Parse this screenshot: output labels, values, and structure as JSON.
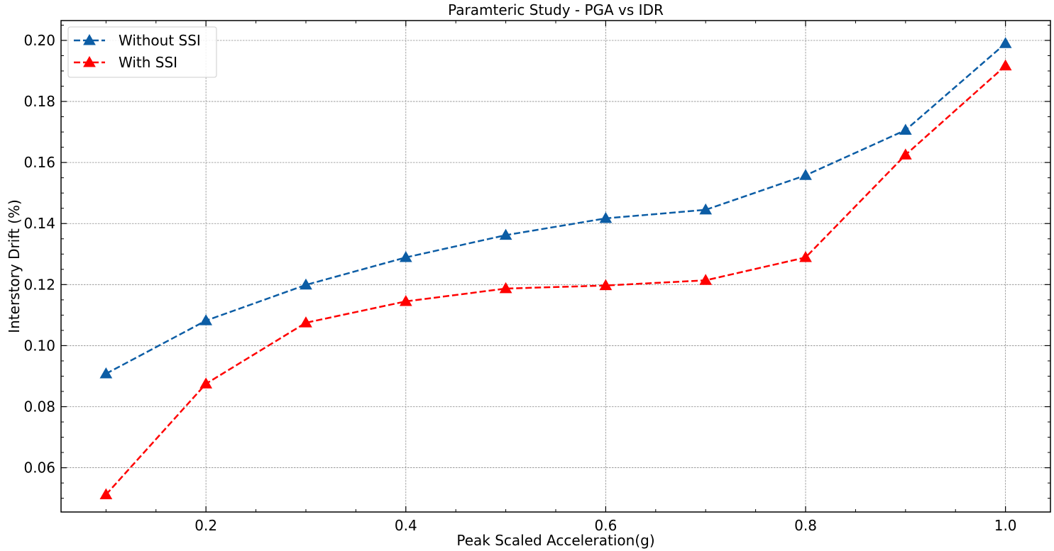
{
  "chart_data": {
    "type": "line",
    "title": "Paramteric Study - PGA vs IDR",
    "xlabel": "Peak Scaled Acceleration(g)",
    "ylabel": "Interstory Drift (%)",
    "xlim": [
      0.055,
      1.045
    ],
    "ylim": [
      0.0455,
      0.2065
    ],
    "xticks": [
      0.2,
      0.4,
      0.6,
      0.8,
      1.0
    ],
    "xtick_labels": [
      "0.2",
      "0.4",
      "0.6",
      "0.8",
      "1.0"
    ],
    "yticks": [
      0.06,
      0.08,
      0.1,
      0.12,
      0.14,
      0.16,
      0.18,
      0.2
    ],
    "ytick_labels": [
      "0.06",
      "0.08",
      "0.10",
      "0.12",
      "0.14",
      "0.16",
      "0.18",
      "0.20"
    ],
    "grid": true,
    "legend_position": "top-left",
    "x": [
      0.1,
      0.2,
      0.3,
      0.4,
      0.5,
      0.6,
      0.7,
      0.8,
      0.9,
      1.0
    ],
    "series": [
      {
        "name": "Without SSI",
        "color": "#0c5da5",
        "marker": "triangle",
        "line_style": "dashed",
        "values": [
          0.0908,
          0.1082,
          0.1199,
          0.1289,
          0.1362,
          0.1417,
          0.1445,
          0.1558,
          0.1706,
          0.199
        ]
      },
      {
        "name": "With SSI",
        "color": "#ff0000",
        "marker": "triangle",
        "line_style": "dashed",
        "values": [
          0.0512,
          0.0875,
          0.1075,
          0.1145,
          0.1187,
          0.1197,
          0.1214,
          0.1289,
          0.1625,
          0.1917
        ]
      }
    ]
  }
}
